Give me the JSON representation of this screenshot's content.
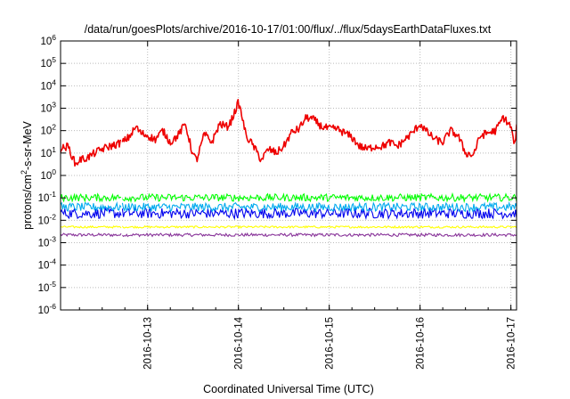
{
  "chart_data": {
    "type": "line",
    "title": "/data/run/goesPlots/archive/2016-10-17/01:00/flux/../flux/5daysEarthDataFluxes.txt",
    "xlabel": "Coordinated Universal Time (UTC)",
    "ylabel": {
      "prefix": "protons/cm",
      "sup": "2",
      "suffix": "-s-sr-MeV"
    },
    "xlim": [
      "2016-10-12T01:00",
      "2016-10-17T01:30"
    ],
    "x_ticks": [
      "2016-10-13",
      "2016-10-14",
      "2016-10-15",
      "2016-10-16",
      "2016-10-17"
    ],
    "y_scale": "log",
    "ylim": [
      1e-06,
      1000000.0
    ],
    "y_ticks": [
      {
        "value": 1e-06,
        "base": "10",
        "exp": "-6"
      },
      {
        "value": 1e-05,
        "base": "10",
        "exp": "-5"
      },
      {
        "value": 0.0001,
        "base": "10",
        "exp": "-4"
      },
      {
        "value": 0.001,
        "base": "10",
        "exp": "-3"
      },
      {
        "value": 0.01,
        "base": "10",
        "exp": "-2"
      },
      {
        "value": 0.1,
        "base": "10",
        "exp": "-1"
      },
      {
        "value": 1,
        "base": "10",
        "exp": "0"
      },
      {
        "value": 10,
        "base": "10",
        "exp": "1"
      },
      {
        "value": 100,
        "base": "10",
        "exp": "2"
      },
      {
        "value": 1000,
        "base": "10",
        "exp": "3"
      },
      {
        "value": 10000,
        "base": "10",
        "exp": "4"
      },
      {
        "value": 100000,
        "base": "10",
        "exp": "5"
      },
      {
        "value": 1000000,
        "base": "10",
        "exp": "6"
      }
    ],
    "grid": true,
    "gap": [
      "2016-10-12T17:00",
      "2016-10-12T17:20"
    ],
    "series": [
      {
        "color": "#ee0000",
        "x": [
          "2016-10-12T01:00",
          "2016-10-12T03:00",
          "2016-10-12T05:00",
          "2016-10-12T06:00",
          "2016-10-12T08:00",
          "2016-10-12T10:00",
          "2016-10-12T12:00",
          "2016-10-12T14:00",
          "2016-10-12T16:00",
          "2016-10-12T17:00",
          "2016-10-12T17:20",
          "2016-10-12T19:00",
          "2016-10-12T21:00",
          "2016-10-12T22:00",
          "2016-10-13T00:00",
          "2016-10-13T02:00",
          "2016-10-13T04:00",
          "2016-10-13T06:00",
          "2016-10-13T08:00",
          "2016-10-13T10:00",
          "2016-10-13T12:00",
          "2016-10-13T13:00",
          "2016-10-13T15:00",
          "2016-10-13T17:00",
          "2016-10-13T19:00",
          "2016-10-13T21:00",
          "2016-10-13T22:00",
          "2016-10-14T00:00",
          "2016-10-14T01:00",
          "2016-10-14T02:00",
          "2016-10-14T04:00",
          "2016-10-14T06:00",
          "2016-10-14T08:00",
          "2016-10-14T10:00",
          "2016-10-14T12:00",
          "2016-10-14T14:00",
          "2016-10-14T16:00",
          "2016-10-14T18:00",
          "2016-10-14T20:00",
          "2016-10-14T22:00",
          "2016-10-15T00:00",
          "2016-10-15T02:00",
          "2016-10-15T04:00",
          "2016-10-15T06:00",
          "2016-10-15T08:00",
          "2016-10-15T10:00",
          "2016-10-15T12:00",
          "2016-10-15T14:00",
          "2016-10-15T16:00",
          "2016-10-15T18:00",
          "2016-10-15T20:00",
          "2016-10-15T22:00",
          "2016-10-16T00:00",
          "2016-10-16T02:00",
          "2016-10-16T04:00",
          "2016-10-16T06:00",
          "2016-10-16T08:00",
          "2016-10-16T10:00",
          "2016-10-16T12:00",
          "2016-10-16T14:00",
          "2016-10-16T16:00",
          "2016-10-16T18:00",
          "2016-10-16T20:00",
          "2016-10-16T22:00",
          "2016-10-17T00:00",
          "2016-10-17T01:00",
          "2016-10-17T01:30"
        ],
        "values": [
          15,
          20,
          3,
          5,
          6,
          10,
          15,
          20,
          25,
          30,
          30,
          50,
          150,
          80,
          60,
          40,
          100,
          30,
          60,
          200,
          8,
          5,
          70,
          30,
          200,
          150,
          250,
          1800,
          400,
          60,
          20,
          5,
          15,
          10,
          20,
          80,
          120,
          400,
          300,
          150,
          120,
          120,
          80,
          50,
          20,
          15,
          20,
          20,
          30,
          20,
          40,
          80,
          200,
          80,
          40,
          30,
          100,
          60,
          10,
          8,
          60,
          80,
          100,
          400,
          150,
          20,
          150
        ]
      },
      {
        "color": "#00ff00",
        "x": [
          "2016-10-12T01:00",
          "2016-10-17T01:30"
        ],
        "values": [
          0.1,
          0.1
        ],
        "spread": [
          0.07,
          0.15
        ]
      },
      {
        "color": "#00aaee",
        "x": [
          "2016-10-12T01:00",
          "2016-10-17T01:30"
        ],
        "values": [
          0.04,
          0.04
        ],
        "spread": [
          0.025,
          0.06
        ]
      },
      {
        "color": "#0000ee",
        "x": [
          "2016-10-12T01:00",
          "2016-10-17T01:30"
        ],
        "values": [
          0.02,
          0.02
        ],
        "spread": [
          0.012,
          0.035
        ]
      },
      {
        "color": "#ffff00",
        "x": [
          "2016-10-12T01:00",
          "2016-10-17T01:30"
        ],
        "values": [
          0.005,
          0.005
        ],
        "spread": [
          0.0045,
          0.0056
        ]
      },
      {
        "color": "#883399",
        "x": [
          "2016-10-12T01:00",
          "2016-10-17T01:30"
        ],
        "values": [
          0.0022,
          0.0022
        ],
        "spread": [
          0.0019,
          0.0026
        ]
      }
    ]
  }
}
